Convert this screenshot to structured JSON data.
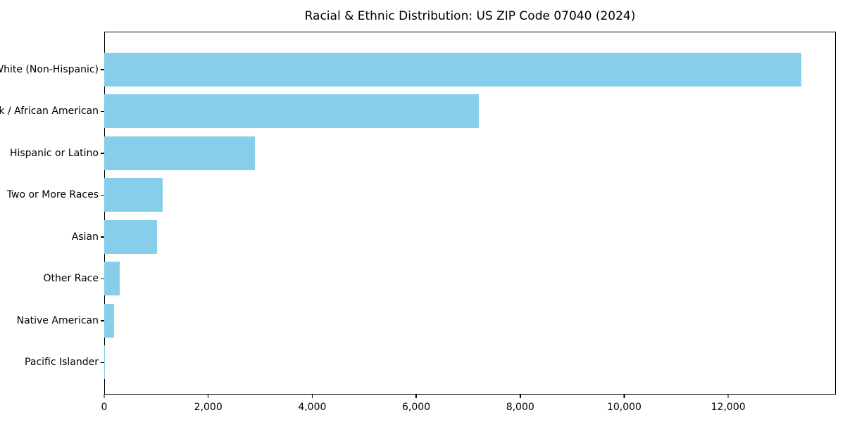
{
  "title": "Racial & Ethnic Distribution: US ZIP Code 07040 (2024)",
  "chart_data": {
    "type": "bar",
    "orientation": "horizontal",
    "title": "Racial & Ethnic Distribution: US ZIP Code 07040 (2024)",
    "xlabel": "",
    "ylabel": "",
    "categories": [
      "White (Non-Hispanic)",
      "Black / African American",
      "Hispanic or Latino",
      "Two or More Races",
      "Asian",
      "Other Race",
      "Native American",
      "Pacific Islander"
    ],
    "values": [
      13400,
      7200,
      2900,
      1130,
      1010,
      300,
      190,
      10
    ],
    "xlim": [
      0,
      14070
    ],
    "x_ticks": [
      0,
      2000,
      4000,
      6000,
      8000,
      10000,
      12000
    ],
    "x_tick_labels": [
      "0",
      "2,000",
      "4,000",
      "6,000",
      "8,000",
      "10,000",
      "12,000"
    ],
    "bar_color": "#87CEEB",
    "background_color": "#ffffff",
    "text_color": "#000000",
    "grid": false,
    "legend": null
  }
}
